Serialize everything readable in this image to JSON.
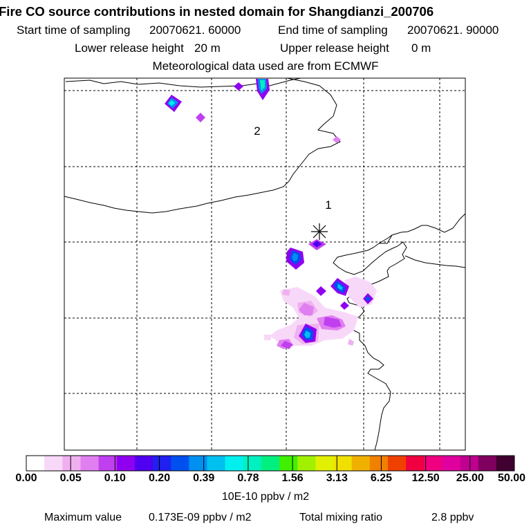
{
  "header": {
    "title": "Fire CO source contributions in nested domain for Shangdianzi_200706",
    "start_label": "Start time of sampling",
    "start_value": "20070621. 60000",
    "end_label": "End time of sampling",
    "end_value": "20070621. 90000",
    "lower_label": "Lower release height",
    "lower_value": "20 m",
    "upper_label": "Upper release height",
    "upper_value": "0 m",
    "met_line": "Meteorological data used are from ECMWF"
  },
  "map": {
    "markers": [
      {
        "label": "1"
      },
      {
        "label": "2"
      }
    ],
    "receptor": "Shangdianzi"
  },
  "legend": {
    "ticks": [
      "0.00",
      "0.05",
      "0.10",
      "0.20",
      "0.39",
      "0.78",
      "1.56",
      "3.13",
      "6.25",
      "12.50",
      "25.00",
      "50.00"
    ],
    "unit": "10E-10 ppbv / m2",
    "colors": [
      "#ffffff",
      "#f8d8f8",
      "#f0b0f0",
      "#e080f0",
      "#c040f0",
      "#9000f0",
      "#5000f0",
      "#2020f0",
      "#0050f0",
      "#0090f0",
      "#00c0f0",
      "#00f0f0",
      "#00f0c0",
      "#00f080",
      "#40f000",
      "#a0f000",
      "#e0f000",
      "#f0e000",
      "#f0b000",
      "#f08000",
      "#f04000",
      "#f00040",
      "#f00080",
      "#e000a0",
      "#c00090",
      "#800060",
      "#400030"
    ]
  },
  "footer": {
    "max_label": "Maximum value",
    "max_value": "0.173E-09 ppbv / m2",
    "total_label": "Total mixing ratio",
    "total_value": "2.8 ppbv"
  }
}
